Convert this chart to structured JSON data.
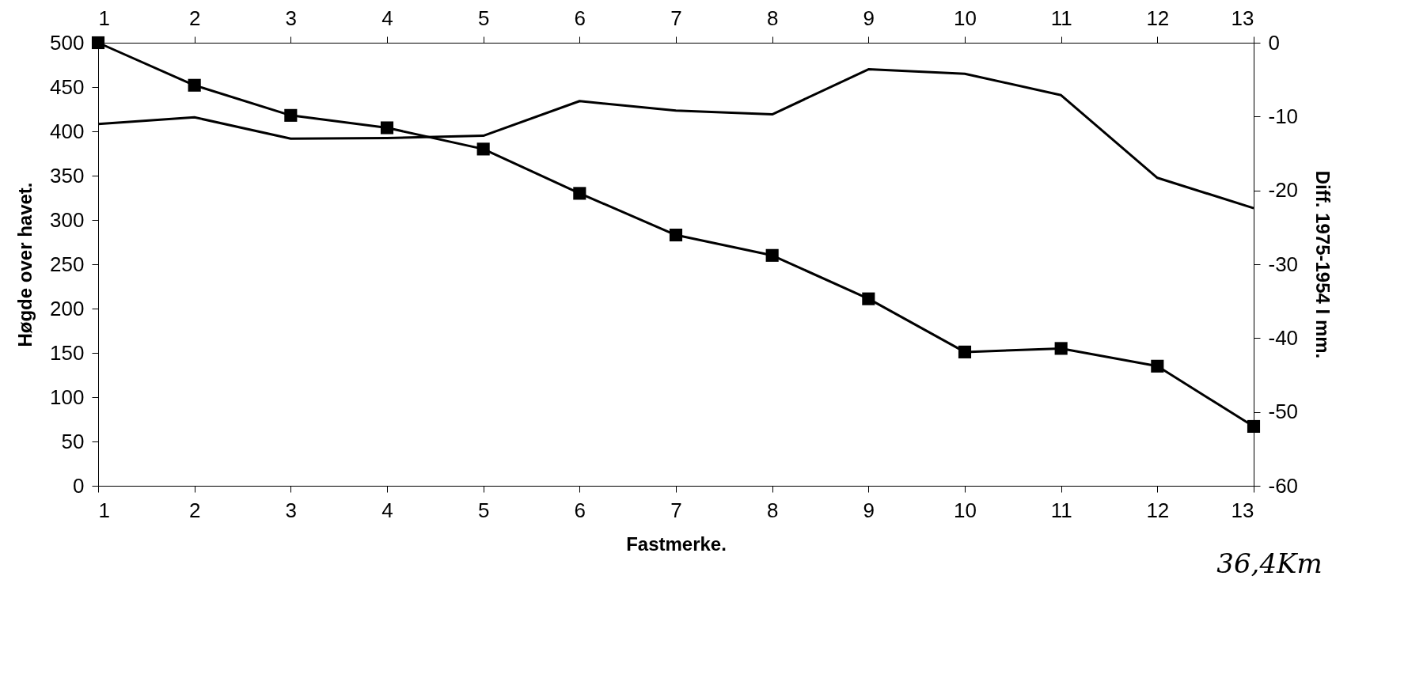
{
  "chart_data": {
    "type": "line",
    "xlabel": "Fastmerke.",
    "ylabel": "Høgde over havet.",
    "y2label": "Diff. 1975-1954 I mm.",
    "x": [
      1,
      2,
      3,
      4,
      5,
      6,
      7,
      8,
      9,
      10,
      11,
      12,
      13
    ],
    "series": [
      {
        "color": "#000000",
        "marker": "square",
        "values": [
          500,
          452,
          418,
          404,
          380,
          330,
          283,
          260,
          211,
          151,
          155,
          135,
          67
        ]
      },
      {
        "color": "#000000",
        "marker": "none",
        "axis": "y2",
        "values": [
          -11.0,
          -10.1,
          -13.0,
          -12.9,
          -12.6,
          -7.9,
          -9.2,
          -9.7,
          -3.6,
          -4.2,
          -7.1,
          -18.3,
          -22.4
        ]
      }
    ],
    "xlim": [
      1,
      13
    ],
    "xticks": [
      1,
      2,
      3,
      4,
      5,
      6,
      7,
      8,
      9,
      10,
      11,
      12,
      13
    ],
    "x2lim": [
      1,
      13
    ],
    "x2ticks": [
      1,
      2,
      3,
      4,
      5,
      6,
      7,
      8,
      9,
      10,
      11,
      12,
      13
    ],
    "ylim": [
      0,
      500
    ],
    "yticks": [
      0,
      50,
      100,
      150,
      200,
      250,
      300,
      350,
      400,
      450,
      500
    ],
    "y2lim": [
      -60,
      0
    ],
    "y2ticks": [
      -60,
      -50,
      -40,
      -30,
      -20,
      -10,
      0
    ],
    "grid": false,
    "annotations": [
      "36,4Km"
    ]
  }
}
